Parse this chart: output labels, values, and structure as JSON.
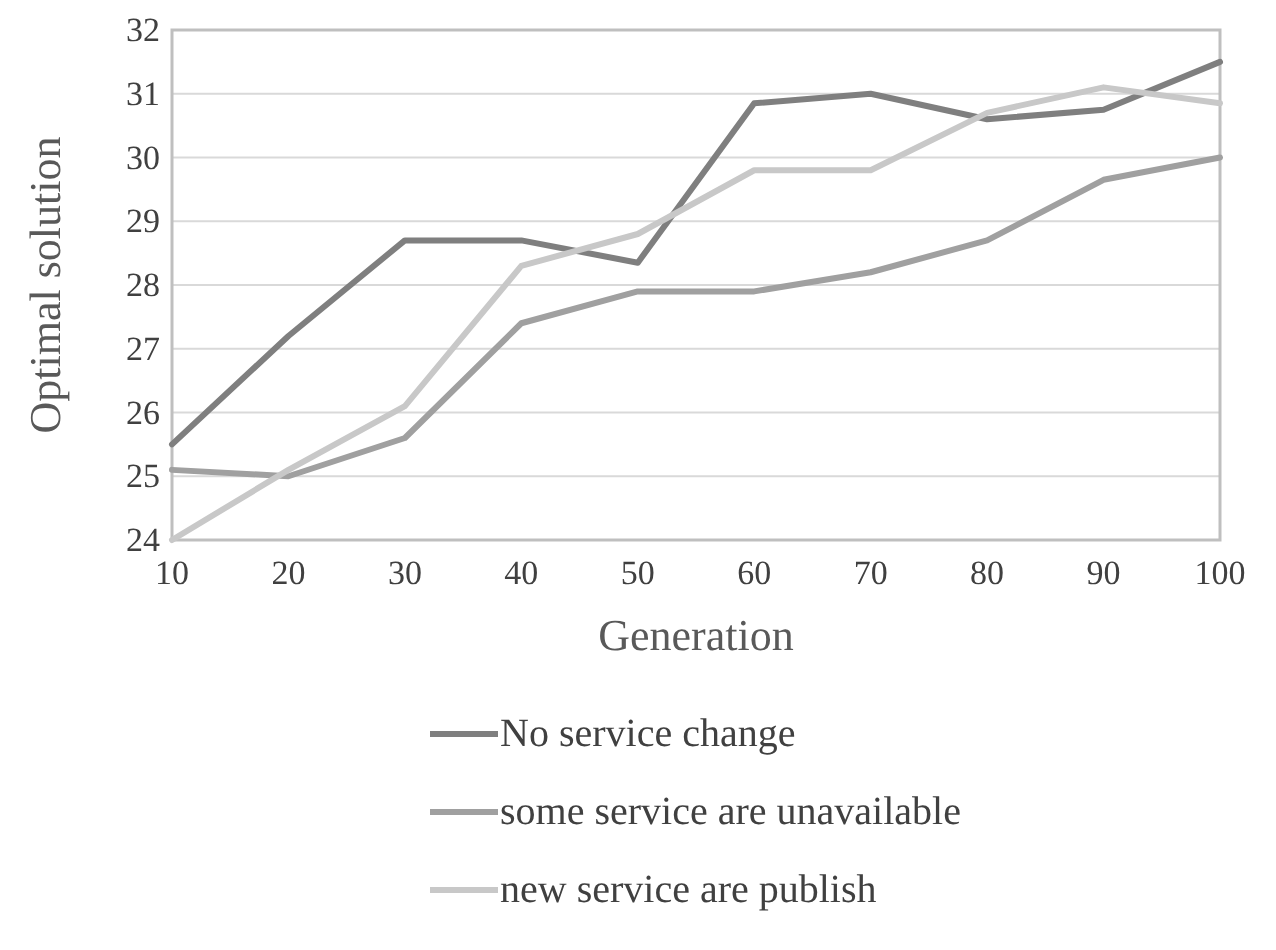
{
  "chart_data": {
    "type": "line",
    "xlabel": "Generation",
    "ylabel": "Optimal solution",
    "x": [
      10,
      20,
      30,
      40,
      50,
      60,
      70,
      80,
      90,
      100
    ],
    "series": [
      {
        "name": "No service change",
        "color": "#7f7f7f",
        "values": [
          25.5,
          27.2,
          28.7,
          28.7,
          28.35,
          30.85,
          31.0,
          30.6,
          30.75,
          31.5
        ]
      },
      {
        "name": "some service are unavailable",
        "color": "#a0a0a0",
        "values": [
          25.1,
          25.0,
          25.6,
          27.4,
          27.9,
          27.9,
          28.2,
          28.7,
          29.65,
          30.0
        ]
      },
      {
        "name": "new service are publish",
        "color": "#c8c8c8",
        "values": [
          24.0,
          25.1,
          26.1,
          28.3,
          28.8,
          29.8,
          29.8,
          30.7,
          31.1,
          30.85
        ]
      }
    ],
    "xlim": [
      10,
      100
    ],
    "xticks": [
      10,
      20,
      30,
      40,
      50,
      60,
      70,
      80,
      90,
      100
    ],
    "ylim": [
      24,
      32
    ],
    "yticks": [
      24,
      25,
      26,
      27,
      28,
      29,
      30,
      31,
      32
    ],
    "grid": "y",
    "legend": "bottom",
    "marker": "none",
    "line_style": "solid"
  }
}
